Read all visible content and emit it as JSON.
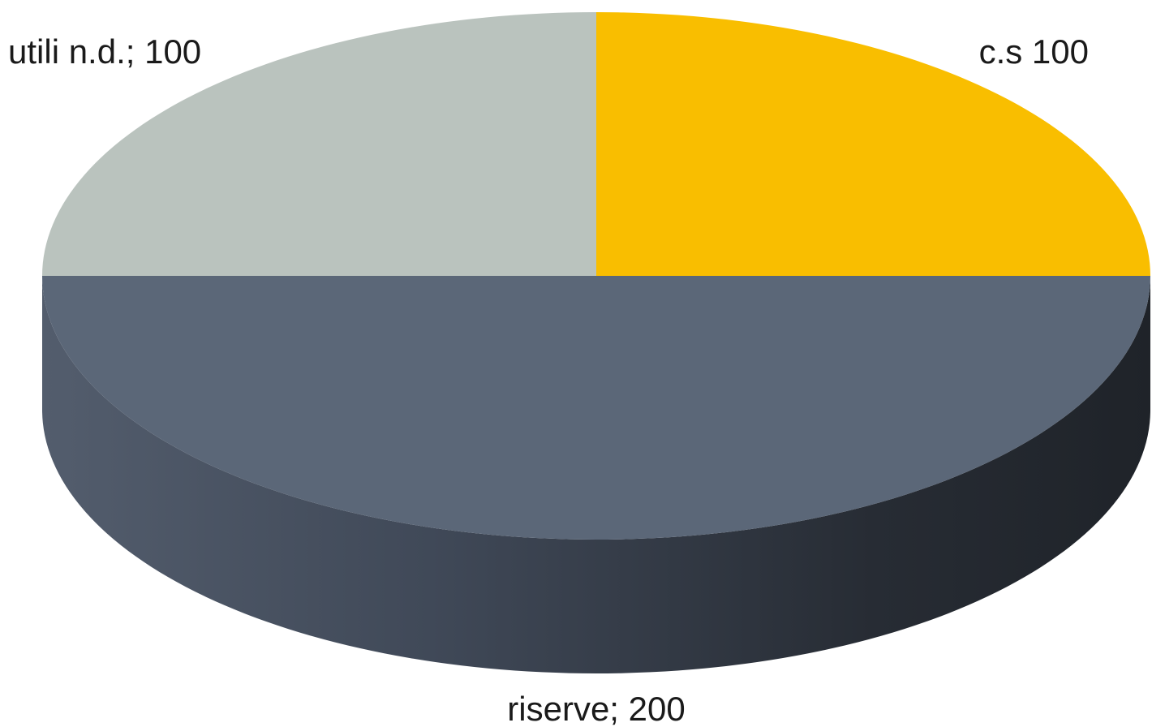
{
  "chart_data": {
    "type": "pie",
    "style": "3d",
    "title": "",
    "slices": [
      {
        "label_text": "c.s 100",
        "value": 100,
        "color": "#F9BE00"
      },
      {
        "label_text": "riserve; 200",
        "value": 200,
        "color": "#5B6778"
      },
      {
        "label_text": "utili n.d.; 100",
        "value": 100,
        "color": "#BAC3BE"
      }
    ]
  }
}
